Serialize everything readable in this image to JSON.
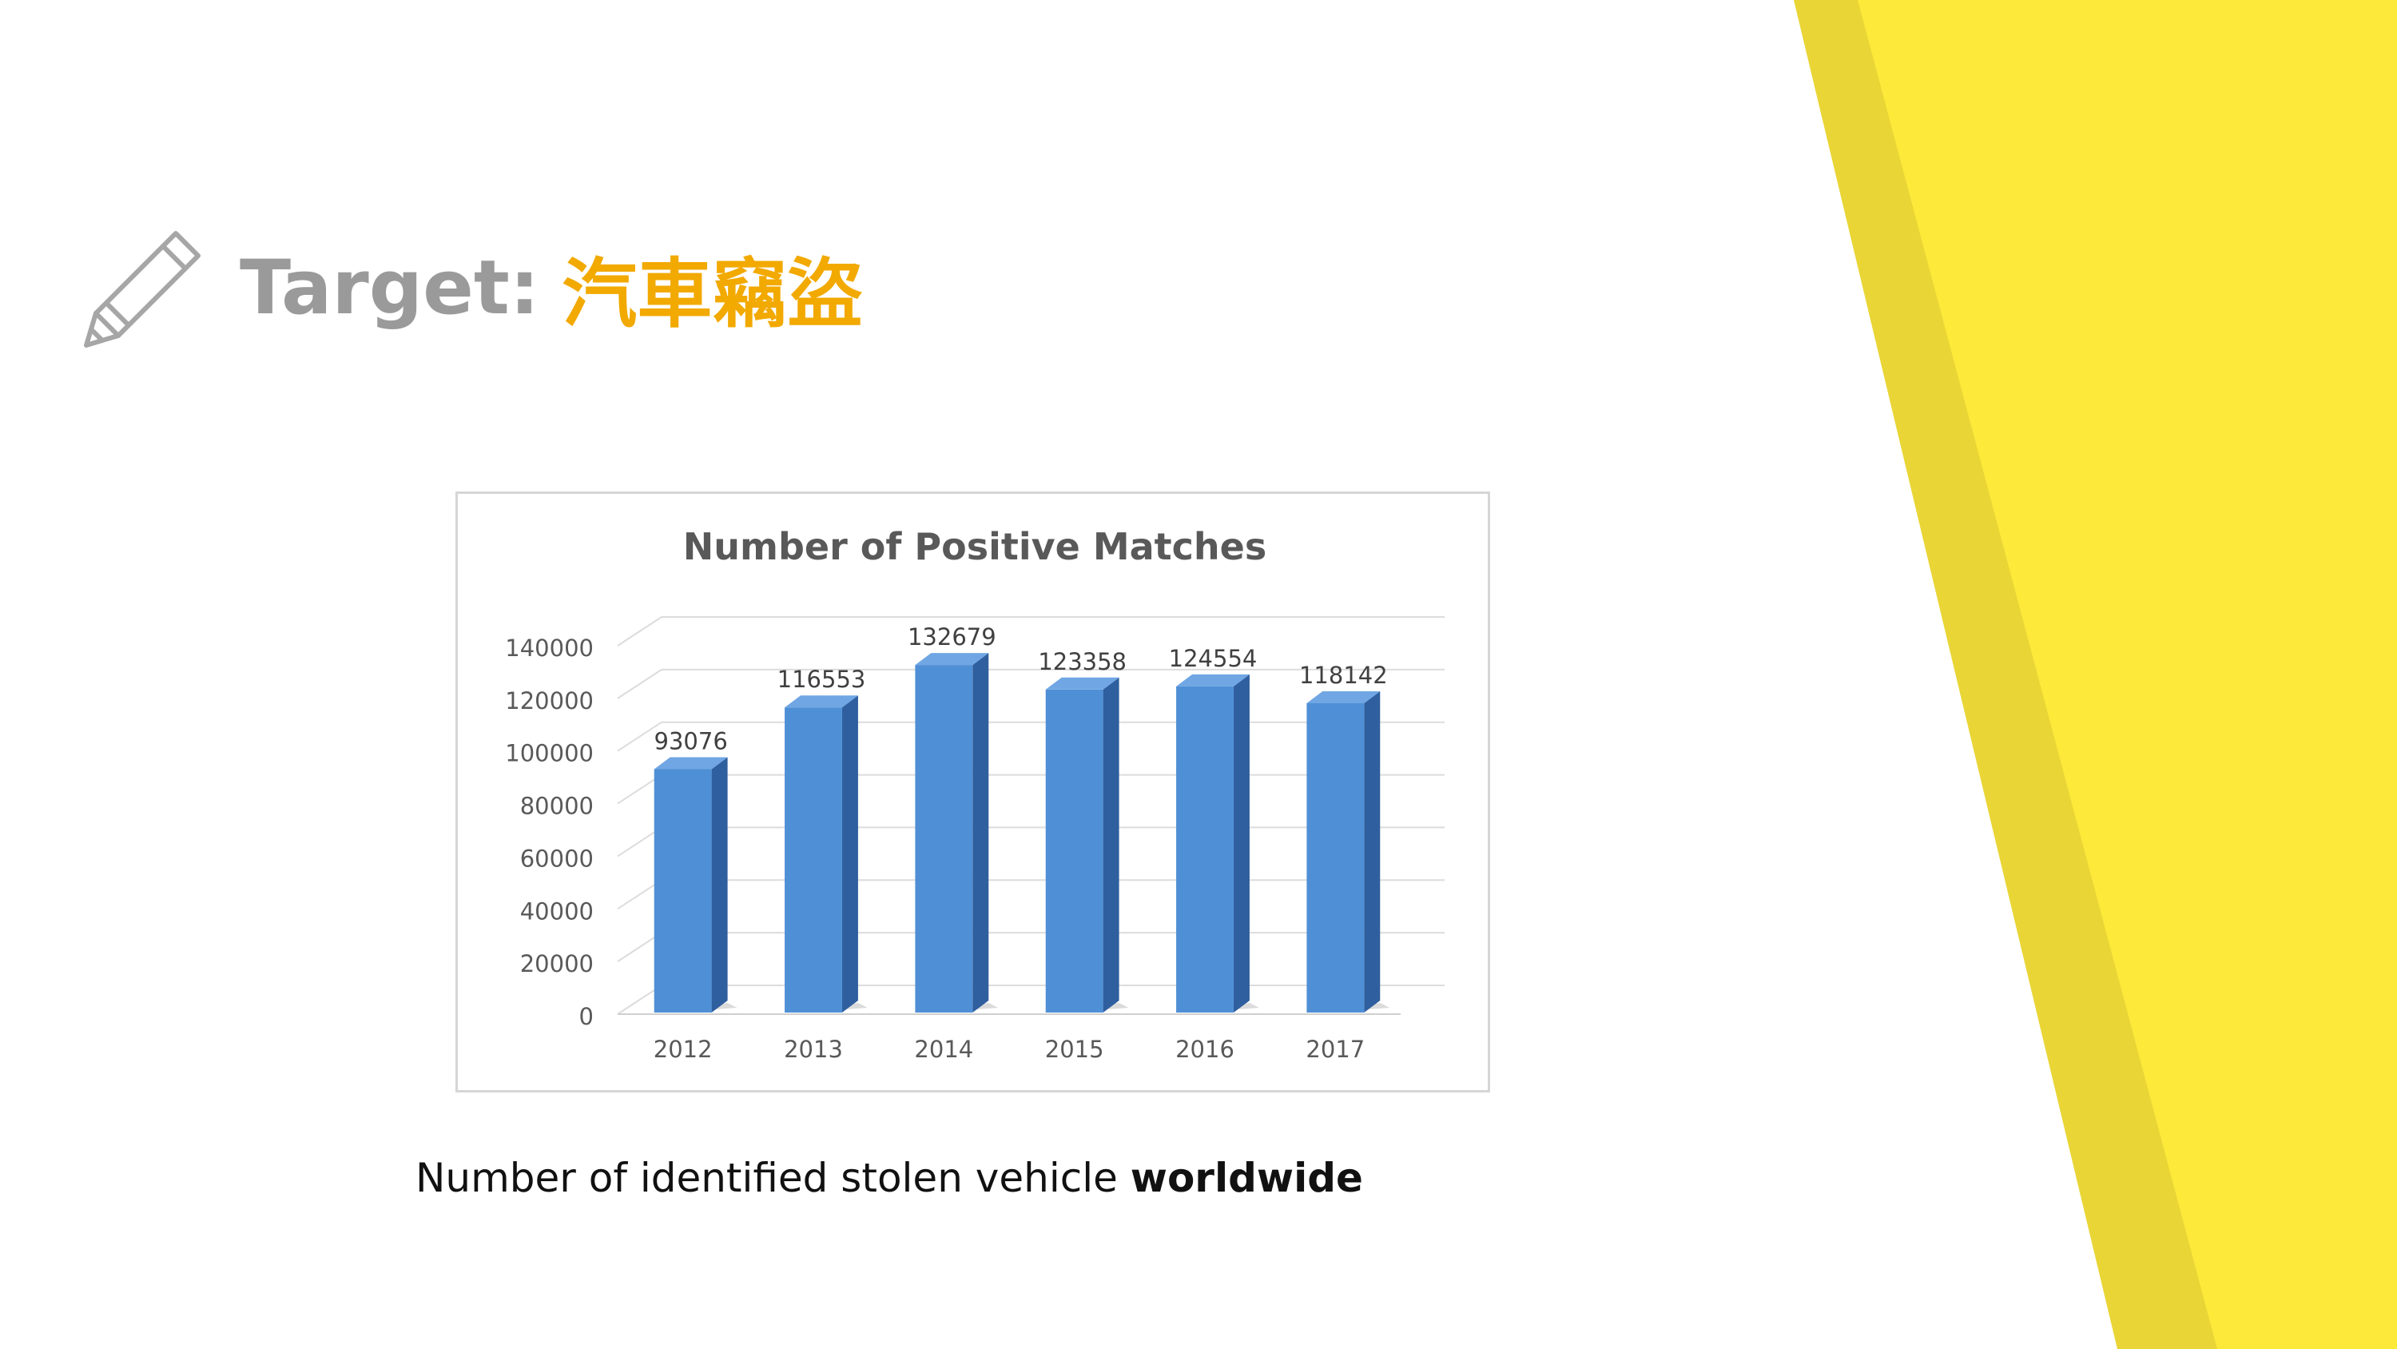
{
  "slide": {
    "title_label": "Target:",
    "title_topic": "汽車竊盜",
    "caption_normal": "Number of identified stolen vehicle ",
    "caption_bold": "worldwide"
  },
  "icons": {
    "title_icon": "pencil-icon"
  },
  "colors": {
    "title_label": "#9a9a9a",
    "title_topic": "#f2a900",
    "accent_yellow": "#fde93a",
    "accent_yellow_dark": "#e9d535",
    "bar_front": "#4f8fd6",
    "bar_side": "#2f5f9e",
    "bar_top": "#6fa6e3"
  },
  "chart_data": {
    "type": "bar",
    "title": "Number of Positive Matches",
    "categories": [
      "2012",
      "2013",
      "2014",
      "2015",
      "2016",
      "2017"
    ],
    "values": [
      93076,
      116553,
      132679,
      123358,
      124554,
      118142
    ],
    "value_labels": [
      "93076",
      "116553",
      "132679",
      "123358",
      "124554",
      "118142"
    ],
    "y_ticks": [
      "0",
      "20000",
      "40000",
      "60000",
      "80000",
      "100000",
      "120000",
      "140000"
    ],
    "ylim": [
      0,
      140000
    ],
    "grid": true,
    "style": "3d-column"
  }
}
